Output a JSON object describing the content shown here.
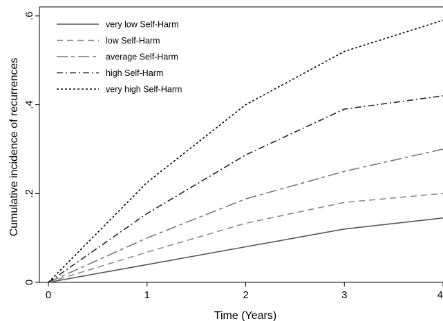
{
  "chart_data": {
    "type": "line",
    "xlabel": "Time (Years)",
    "ylabel": "Cumulative incidence of recurrences",
    "xlim": [
      0,
      4
    ],
    "ylim": [
      0,
      0.6
    ],
    "x_ticks": [
      0,
      1,
      2,
      3,
      4
    ],
    "x_tick_labels": [
      "0",
      "1",
      "2",
      "3",
      "4"
    ],
    "y_ticks": [
      0,
      0.2,
      0.4,
      0.6
    ],
    "y_tick_labels": [
      "0",
      ".2",
      ".4",
      ".6"
    ],
    "grid": false,
    "legend_position": "top-left",
    "x": [
      0,
      1,
      2,
      3,
      4
    ],
    "series": [
      {
        "name": "very low Self-Harm",
        "values": [
          0,
          0.04,
          0.08,
          0.12,
          0.145
        ],
        "color": "#555555",
        "dash": "solid"
      },
      {
        "name": "low Self-Harm",
        "values": [
          0,
          0.068,
          0.133,
          0.18,
          0.2
        ],
        "color": "#888888",
        "dash": "dash"
      },
      {
        "name": "average Self-Harm",
        "values": [
          0,
          0.1,
          0.188,
          0.25,
          0.3
        ],
        "color": "#777777",
        "dash": "longdash-dot"
      },
      {
        "name": "high Self-Harm",
        "values": [
          0,
          0.155,
          0.287,
          0.39,
          0.42
        ],
        "color": "#222222",
        "dash": "dashdot"
      },
      {
        "name": "very high Self-Harm",
        "values": [
          0,
          0.225,
          0.4,
          0.52,
          0.59
        ],
        "color": "#000000",
        "dash": "dot"
      }
    ]
  }
}
